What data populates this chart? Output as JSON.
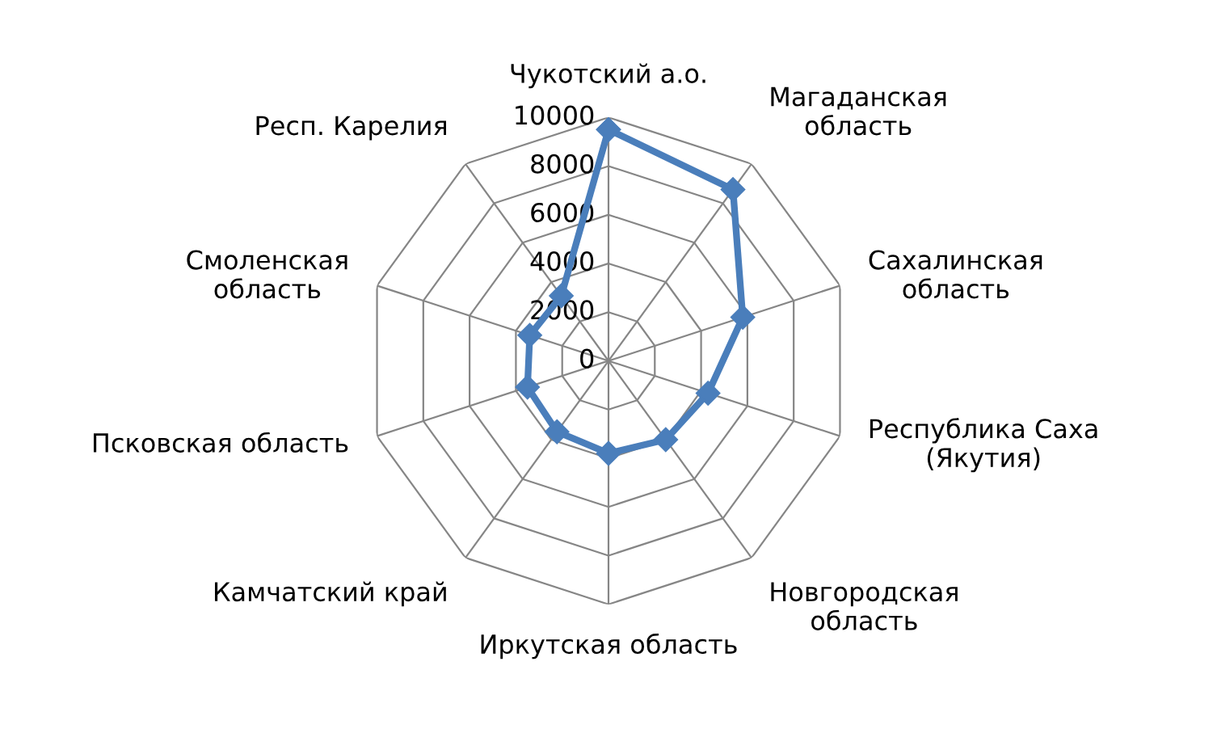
{
  "chart_data": {
    "type": "radar",
    "categories": [
      "Чукотский а.о.",
      "Магаданская\nобласть",
      "Сахалинская\nобласть",
      "Республика Саха\n(Якутия)",
      "Новгородская\nобласть",
      "Иркутская область",
      "Камчатский край",
      "Псковская область",
      "Смоленская\nобласть",
      "Респ. Карелия"
    ],
    "series": [
      {
        "color": "#4a7ebb",
        "values": [
          9500,
          8700,
          5800,
          4300,
          4000,
          3800,
          3600,
          3500,
          3400,
          3300
        ]
      }
    ],
    "ylim": [
      0,
      10000
    ],
    "yticks": [
      0,
      2000,
      4000,
      6000,
      8000,
      10000
    ],
    "grid": true,
    "marker": "diamond",
    "line_style": "solid"
  }
}
